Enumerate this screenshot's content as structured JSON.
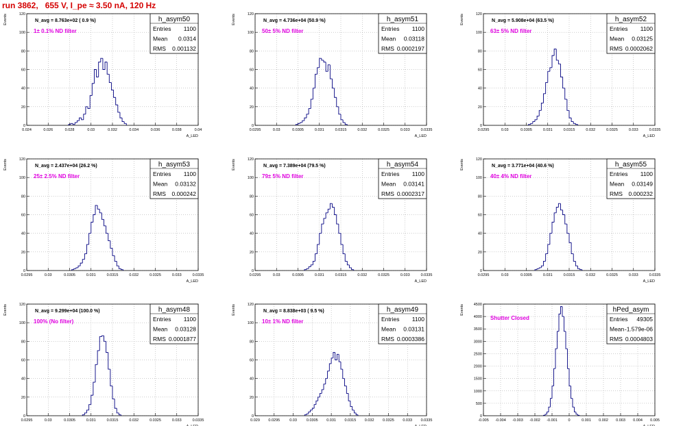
{
  "title": "run 3862,   655 V, I_pe ≈ 3.50 nA, 120 Hz",
  "colors": {
    "title": "#d40000",
    "histogram_line": "#000080",
    "annotation": "#e000e0",
    "grid": "#999999"
  },
  "chart_data": [
    {
      "type": "histogram",
      "name": "h_asym50",
      "nav_text": "N_avg = 8.763e+02 ( 0.9 %)",
      "filter_text": "1± 0.1% ND filter",
      "stats": {
        "Entries": "1100",
        "Mean": "0.0314",
        "RMS": "0.001132"
      },
      "xlabel": "A_LED",
      "ylabel": "Events",
      "xlim": [
        0.024,
        0.04
      ],
      "ylim": [
        0,
        120
      ],
      "xticks": [
        0.024,
        0.026,
        0.028,
        0.03,
        0.032,
        0.034,
        0.036,
        0.038,
        0.04
      ],
      "xtick_labels": [
        "0.024",
        "0.026",
        "0.028",
        "0.03",
        "0.032",
        "0.034",
        "0.036",
        "0.038",
        "0.04"
      ],
      "yticks": [
        0,
        20,
        40,
        60,
        80,
        100,
        120
      ],
      "grid": true,
      "legend": "top-right",
      "x_start": 0.0279,
      "bin_width": 0.0002,
      "counts": [
        1,
        2,
        1,
        3,
        5,
        8,
        6,
        12,
        20,
        18,
        32,
        45,
        60,
        52,
        68,
        72,
        60,
        68,
        55,
        46,
        38,
        30,
        22,
        14,
        8,
        4,
        2
      ]
    },
    {
      "type": "histogram",
      "name": "h_asym51",
      "nav_text": "N_avg = 4.736e+04 (50.9 %)",
      "filter_text": "50± 5% ND filter",
      "stats": {
        "Entries": "1100",
        "Mean": "0.03118",
        "RMS": "0.0002197"
      },
      "xlabel": "A_LED",
      "ylabel": "Events",
      "xlim": [
        0.0295,
        0.0335
      ],
      "ylim": [
        0,
        120
      ],
      "xticks": [
        0.0295,
        0.03,
        0.0305,
        0.031,
        0.0315,
        0.032,
        0.0325,
        0.033,
        0.0335
      ],
      "xtick_labels": [
        "0.0295",
        "0.03",
        "0.0305",
        "0.031",
        "0.0315",
        "0.032",
        "0.0325",
        "0.033",
        "0.0335"
      ],
      "yticks": [
        0,
        20,
        40,
        60,
        80,
        100,
        120
      ],
      "grid": true,
      "legend": "top-right",
      "x_start": 0.03045,
      "bin_width": 5e-05,
      "counts": [
        1,
        2,
        3,
        5,
        8,
        12,
        18,
        28,
        40,
        55,
        62,
        72,
        70,
        68,
        58,
        65,
        50,
        40,
        30,
        20,
        12,
        6,
        3,
        1
      ]
    },
    {
      "type": "histogram",
      "name": "h_asym52",
      "nav_text": "N_avg = 5.908e+04 (63.5 %)",
      "filter_text": "63± 5% ND filter",
      "stats": {
        "Entries": "1100",
        "Mean": "0.03125",
        "RMS": "0.0002062"
      },
      "xlabel": "A_LED",
      "ylabel": "Events",
      "xlim": [
        0.0295,
        0.0335
      ],
      "ylim": [
        0,
        120
      ],
      "xticks": [
        0.0295,
        0.03,
        0.0305,
        0.031,
        0.0315,
        0.032,
        0.0325,
        0.033,
        0.0335
      ],
      "xtick_labels": [
        "0.0295",
        "0.03",
        "0.0305",
        "0.031",
        "0.0315",
        "0.032",
        "0.0325",
        "0.033",
        "0.0335"
      ],
      "yticks": [
        0,
        20,
        40,
        60,
        80,
        100,
        120
      ],
      "grid": true,
      "legend": "top-right",
      "x_start": 0.03055,
      "bin_width": 5e-05,
      "counts": [
        1,
        2,
        4,
        6,
        10,
        16,
        24,
        34,
        46,
        58,
        62,
        75,
        82,
        70,
        66,
        52,
        40,
        28,
        16,
        8,
        4,
        2,
        1
      ]
    },
    {
      "type": "histogram",
      "name": "h_asym53",
      "nav_text": "N_avg = 2.437e+04 (26.2 %)",
      "filter_text": "25± 2.5% ND filter",
      "stats": {
        "Entries": "1100",
        "Mean": "0.03132",
        "RMS": "0.000242"
      },
      "xlabel": "A_LED",
      "ylabel": "Events",
      "xlim": [
        0.0295,
        0.0335
      ],
      "ylim": [
        0,
        120
      ],
      "xticks": [
        0.0295,
        0.03,
        0.0305,
        0.031,
        0.0315,
        0.032,
        0.0325,
        0.033,
        0.0335
      ],
      "xtick_labels": [
        "0.0295",
        "0.03",
        "0.0305",
        "0.031",
        "0.0315",
        "0.032",
        "0.0325",
        "0.033",
        "0.0335"
      ],
      "yticks": [
        0,
        20,
        40,
        60,
        80,
        100,
        120
      ],
      "grid": true,
      "legend": "top-right",
      "x_start": 0.03055,
      "bin_width": 5e-05,
      "counts": [
        1,
        2,
        3,
        5,
        8,
        12,
        18,
        28,
        40,
        52,
        60,
        70,
        66,
        62,
        55,
        48,
        40,
        32,
        24,
        16,
        10,
        5,
        2,
        1
      ]
    },
    {
      "type": "histogram",
      "name": "h_asym54",
      "nav_text": "N_avg = 7.389e+04 (79.5 %)",
      "filter_text": "79± 5% ND filter",
      "stats": {
        "Entries": "1100",
        "Mean": "0.03141",
        "RMS": "0.0002317"
      },
      "xlabel": "A_LED",
      "ylabel": "Events",
      "xlim": [
        0.0295,
        0.0335
      ],
      "ylim": [
        0,
        120
      ],
      "xticks": [
        0.0295,
        0.03,
        0.0305,
        0.031,
        0.0315,
        0.032,
        0.0325,
        0.033,
        0.0335
      ],
      "xtick_labels": [
        "0.0295",
        "0.03",
        "0.0305",
        "0.031",
        "0.0315",
        "0.032",
        "0.0325",
        "0.033",
        "0.0335"
      ],
      "yticks": [
        0,
        20,
        40,
        60,
        80,
        100,
        120
      ],
      "grid": true,
      "legend": "top-right",
      "x_start": 0.03065,
      "bin_width": 5e-05,
      "counts": [
        1,
        2,
        4,
        6,
        10,
        18,
        28,
        40,
        50,
        56,
        62,
        66,
        72,
        68,
        60,
        50,
        40,
        28,
        18,
        10,
        6,
        3,
        1
      ]
    },
    {
      "type": "histogram",
      "name": "h_asym55",
      "nav_text": "N_avg = 3.771e+04 (40.6 %)",
      "filter_text": "40± 4% ND filter",
      "stats": {
        "Entries": "1100",
        "Mean": "0.03149",
        "RMS": "0.000232"
      },
      "xlabel": "A_LED",
      "ylabel": "Events",
      "xlim": [
        0.0295,
        0.0335
      ],
      "ylim": [
        0,
        120
      ],
      "xticks": [
        0.0295,
        0.03,
        0.0305,
        0.031,
        0.0315,
        0.032,
        0.0325,
        0.033,
        0.0335
      ],
      "xtick_labels": [
        "0.0295",
        "0.03",
        "0.0305",
        "0.031",
        "0.0315",
        "0.032",
        "0.0325",
        "0.033",
        "0.0335"
      ],
      "yticks": [
        0,
        20,
        40,
        60,
        80,
        100,
        120
      ],
      "grid": true,
      "legend": "top-right",
      "x_start": 0.0307,
      "bin_width": 5e-05,
      "counts": [
        1,
        2,
        3,
        5,
        10,
        18,
        28,
        40,
        52,
        62,
        68,
        72,
        65,
        60,
        50,
        40,
        30,
        18,
        10,
        5,
        2,
        1
      ]
    },
    {
      "type": "histogram",
      "name": "h_asym48",
      "nav_text": "N_avg = 9.299e+04 (100.0 %)",
      "filter_text": "100% (No filter)",
      "stats": {
        "Entries": "1100",
        "Mean": "0.03128",
        "RMS": "0.0001877"
      },
      "xlabel": "A_LED",
      "ylabel": "Events",
      "xlim": [
        0.0295,
        0.0335
      ],
      "ylim": [
        0,
        120
      ],
      "xticks": [
        0.0295,
        0.03,
        0.0305,
        0.031,
        0.0315,
        0.032,
        0.0325,
        0.033,
        0.0335
      ],
      "xtick_labels": [
        "0.0295",
        "0.03",
        "0.0305",
        "0.031",
        "0.0315",
        "0.032",
        "0.0325",
        "0.033",
        "0.0335"
      ],
      "yticks": [
        0,
        20,
        40,
        60,
        80,
        100,
        120
      ],
      "grid": true,
      "legend": "top-right",
      "x_start": 0.0308,
      "bin_width": 5e-05,
      "counts": [
        1,
        3,
        6,
        12,
        22,
        36,
        55,
        70,
        85,
        86,
        80,
        68,
        50,
        32,
        18,
        8,
        3,
        1
      ]
    },
    {
      "type": "histogram",
      "name": "h_asym49",
      "nav_text": "N_avg = 8.838e+03 ( 9.5 %)",
      "filter_text": "10± 1% ND filter",
      "stats": {
        "Entries": "1100",
        "Mean": "0.03131",
        "RMS": "0.0003386"
      },
      "xlabel": "A_LED",
      "ylabel": "Events",
      "xlim": [
        0.029,
        0.0335
      ],
      "ylim": [
        0,
        120
      ],
      "xticks": [
        0.029,
        0.0295,
        0.03,
        0.0305,
        0.031,
        0.0315,
        0.032,
        0.0325,
        0.033,
        0.0335
      ],
      "xtick_labels": [
        "0.029",
        "0.0295",
        "0.03",
        "0.0305",
        "0.031",
        "0.0315",
        "0.032",
        "0.0325",
        "0.033",
        "0.0335"
      ],
      "yticks": [
        0,
        20,
        40,
        60,
        80,
        100,
        120
      ],
      "grid": true,
      "legend": "top-right",
      "x_start": 0.0303,
      "bin_width": 5e-05,
      "counts": [
        1,
        2,
        4,
        6,
        8,
        12,
        16,
        20,
        24,
        28,
        34,
        40,
        48,
        56,
        62,
        68,
        60,
        66,
        58,
        50,
        40,
        32,
        24,
        16,
        10,
        6,
        3,
        1
      ]
    },
    {
      "type": "histogram",
      "name": "hPed_asym",
      "nav_text": "",
      "filter_text": "Shutter Closed",
      "stats": {
        "Entries": "49305",
        "Mean": "-1.579e-06",
        "RMS": "0.0004803"
      },
      "xlabel": "A_LED",
      "ylabel": "Events",
      "xlim": [
        -0.005,
        0.005
      ],
      "ylim": [
        0,
        4500
      ],
      "xticks": [
        -0.005,
        -0.004,
        -0.003,
        -0.002,
        -0.001,
        0,
        0.001,
        0.002,
        0.003,
        0.004,
        0.005
      ],
      "xtick_labels": [
        "-0.005",
        "-0.004",
        "-0.003",
        "-0.002",
        "-0.001",
        "0",
        "0.001",
        "0.002",
        "0.003",
        "0.004",
        "0.005"
      ],
      "yticks": [
        0,
        500,
        1000,
        1500,
        2000,
        2500,
        3000,
        3500,
        4000,
        4500
      ],
      "grid": true,
      "legend": "top-right",
      "x_start": -0.0015,
      "bin_width": 0.0001,
      "counts": [
        20,
        60,
        150,
        350,
        700,
        1200,
        1900,
        2700,
        3400,
        4100,
        4400,
        4000,
        3400,
        2700,
        1900,
        1200,
        700,
        350,
        150,
        60,
        20
      ]
    }
  ]
}
